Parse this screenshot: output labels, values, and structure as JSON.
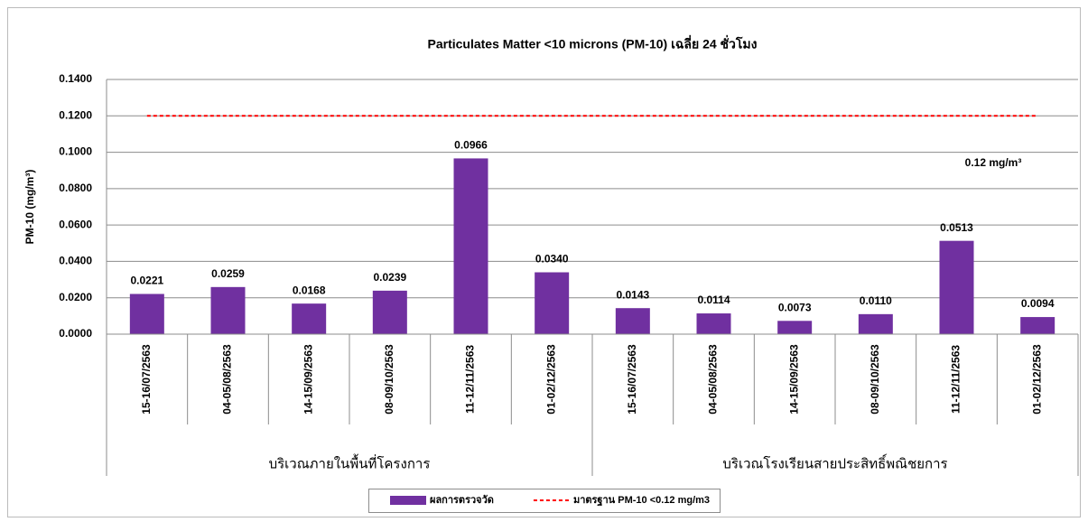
{
  "chart_data": {
    "type": "bar",
    "title": "Particulates Matter  <10 microns (PM-10) เฉลี่ย 24 ชั่วโมง",
    "y_label": "PM-10 (mg/m³)",
    "annotation": "0.12 mg/m³",
    "groups": [
      {
        "name": "บริเวณภายในพื้นที่โครงการ",
        "categories": [
          "15-16/07/2563",
          "04-05/08/2563",
          "14-15/09/2563",
          "08-09/10/2563",
          "11-12/11/2563",
          "01-02/12/2563"
        ]
      },
      {
        "name": "บริเวณโรงเรียนสายประสิทธิ์พณิชยการ",
        "categories": [
          "15-16/07/2563",
          "04-05/08/2563",
          "14-15/09/2563",
          "08-09/10/2563",
          "11-12/11/2563",
          "01-02/12/2563"
        ]
      }
    ],
    "series": [
      {
        "name": "ผลการตรวจวัด",
        "type": "bar",
        "color": "#7030a0",
        "values": [
          0.0221,
          0.0259,
          0.0168,
          0.0239,
          0.0966,
          0.034,
          0.0143,
          0.0114,
          0.0073,
          0.011,
          0.0513,
          0.0094
        ],
        "value_labels": [
          "0.0221",
          "0.0259",
          "0.0168",
          "0.0239",
          "0.0966",
          "0.0340",
          "0.0143",
          "0.0114",
          "0.0073",
          "0.0110",
          "0.0513",
          "0.0094"
        ]
      },
      {
        "name": "มาตรฐาน PM-10 <0.12 mg/m3",
        "type": "line",
        "dashed": true,
        "color": "#ff0000",
        "values": [
          0.12,
          0.12,
          0.12,
          0.12,
          0.12,
          0.12,
          0.12,
          0.12,
          0.12,
          0.12,
          0.12,
          0.12
        ]
      }
    ],
    "ylim": [
      0,
      0.14
    ],
    "yticks": [
      {
        "value": 0,
        "label": "0.0000"
      },
      {
        "value": 0.02,
        "label": "0.0200"
      },
      {
        "value": 0.04,
        "label": "0.0400"
      },
      {
        "value": 0.06,
        "label": "0.0600"
      },
      {
        "value": 0.08,
        "label": "0.0800"
      },
      {
        "value": 0.1,
        "label": "0.1000"
      },
      {
        "value": 0.12,
        "label": "0.1200"
      },
      {
        "value": 0.14,
        "label": "0.1400"
      }
    ],
    "grid": true,
    "legend": "bottom"
  }
}
